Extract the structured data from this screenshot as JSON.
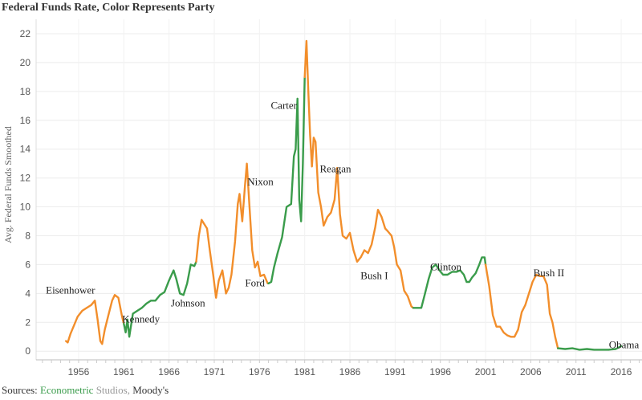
{
  "chart_data": {
    "type": "line",
    "title": "Federal Funds Rate, Color Represents Party",
    "ylabel": "Avg. Federal Funds Smoothed",
    "xlabel": "",
    "xlim": [
      1951.3,
      2018.3
    ],
    "ylim": [
      -0.6,
      23
    ],
    "x_ticks": [
      1956,
      1961,
      1966,
      1971,
      1976,
      1981,
      1986,
      1991,
      1996,
      2001,
      2006,
      2011,
      2016
    ],
    "y_ticks": [
      0,
      2,
      4,
      6,
      8,
      10,
      12,
      14,
      16,
      18,
      20,
      22
    ],
    "grid": true,
    "colors": {
      "Republican": "#f28e2b",
      "Democrat": "#3a9c4b"
    },
    "series": [
      {
        "party": "Republican",
        "points": [
          [
            1954.6,
            0.7
          ],
          [
            1954.8,
            0.6
          ],
          [
            1955.1,
            1.2
          ],
          [
            1955.5,
            1.8
          ],
          [
            1955.9,
            2.4
          ],
          [
            1956.4,
            2.8
          ],
          [
            1956.9,
            3.0
          ],
          [
            1957.4,
            3.2
          ],
          [
            1957.8,
            3.5
          ],
          [
            1958.1,
            2.2
          ],
          [
            1958.4,
            0.7
          ],
          [
            1958.6,
            0.5
          ],
          [
            1958.9,
            1.5
          ],
          [
            1959.3,
            2.5
          ],
          [
            1959.7,
            3.5
          ],
          [
            1960.0,
            3.9
          ],
          [
            1960.4,
            3.7
          ],
          [
            1960.8,
            2.4
          ],
          [
            1961.0,
            1.9
          ]
        ]
      },
      {
        "party": "Democrat",
        "points": [
          [
            1961.0,
            1.9
          ],
          [
            1961.2,
            1.3
          ],
          [
            1961.4,
            2.2
          ],
          [
            1961.6,
            1.0
          ],
          [
            1962.0,
            2.6
          ],
          [
            1962.5,
            2.8
          ],
          [
            1963.0,
            3.0
          ],
          [
            1963.5,
            3.3
          ],
          [
            1964.0,
            3.5
          ],
          [
            1964.5,
            3.5
          ],
          [
            1965.0,
            3.9
          ],
          [
            1965.5,
            4.1
          ],
          [
            1966.0,
            4.9
          ],
          [
            1966.5,
            5.6
          ],
          [
            1966.8,
            5.0
          ],
          [
            1967.2,
            4.0
          ],
          [
            1967.6,
            3.9
          ],
          [
            1968.0,
            4.7
          ],
          [
            1968.4,
            6.0
          ],
          [
            1968.8,
            5.9
          ],
          [
            1969.0,
            6.2
          ]
        ]
      },
      {
        "party": "Republican",
        "points": [
          [
            1969.0,
            6.2
          ],
          [
            1969.3,
            8.0
          ],
          [
            1969.6,
            9.1
          ],
          [
            1969.9,
            8.8
          ],
          [
            1970.2,
            8.5
          ],
          [
            1970.5,
            7.0
          ],
          [
            1970.9,
            5.2
          ],
          [
            1971.2,
            3.7
          ],
          [
            1971.5,
            4.9
          ],
          [
            1971.9,
            5.6
          ],
          [
            1972.3,
            4.0
          ],
          [
            1972.6,
            4.4
          ],
          [
            1972.9,
            5.3
          ],
          [
            1973.3,
            7.6
          ],
          [
            1973.6,
            10.2
          ],
          [
            1973.8,
            10.9
          ],
          [
            1974.1,
            9.0
          ],
          [
            1974.4,
            11.5
          ],
          [
            1974.6,
            13.0
          ],
          [
            1974.9,
            10.0
          ],
          [
            1975.2,
            7.0
          ],
          [
            1975.5,
            5.8
          ],
          [
            1975.8,
            6.2
          ],
          [
            1976.1,
            5.2
          ],
          [
            1976.5,
            5.3
          ],
          [
            1976.9,
            4.7
          ],
          [
            1977.0,
            4.7
          ]
        ]
      },
      {
        "party": "Democrat",
        "points": [
          [
            1977.0,
            4.7
          ],
          [
            1977.3,
            4.8
          ],
          [
            1977.6,
            5.8
          ],
          [
            1978.0,
            6.8
          ],
          [
            1978.5,
            7.9
          ],
          [
            1979.0,
            10.0
          ],
          [
            1979.5,
            10.2
          ],
          [
            1979.8,
            13.5
          ],
          [
            1980.0,
            14.0
          ],
          [
            1980.2,
            17.5
          ],
          [
            1980.4,
            10.5
          ],
          [
            1980.6,
            9.0
          ],
          [
            1980.8,
            13.0
          ],
          [
            1981.0,
            19.0
          ]
        ]
      },
      {
        "party": "Republican",
        "points": [
          [
            1981.0,
            19.0
          ],
          [
            1981.2,
            21.5
          ],
          [
            1981.4,
            18.0
          ],
          [
            1981.6,
            15.0
          ],
          [
            1981.8,
            12.8
          ],
          [
            1982.0,
            14.8
          ],
          [
            1982.2,
            14.5
          ],
          [
            1982.5,
            11.0
          ],
          [
            1982.8,
            10.0
          ],
          [
            1983.1,
            8.7
          ],
          [
            1983.5,
            9.3
          ],
          [
            1983.9,
            9.6
          ],
          [
            1984.3,
            10.5
          ],
          [
            1984.6,
            12.7
          ],
          [
            1984.9,
            9.5
          ],
          [
            1985.2,
            8.0
          ],
          [
            1985.6,
            7.8
          ],
          [
            1986.0,
            8.2
          ],
          [
            1986.4,
            7.0
          ],
          [
            1986.8,
            6.2
          ],
          [
            1987.2,
            6.5
          ],
          [
            1987.6,
            7.0
          ],
          [
            1988.0,
            6.8
          ],
          [
            1988.4,
            7.4
          ],
          [
            1988.8,
            8.6
          ],
          [
            1989.1,
            9.8
          ],
          [
            1989.5,
            9.3
          ],
          [
            1989.9,
            8.5
          ],
          [
            1990.2,
            8.3
          ],
          [
            1990.6,
            8.0
          ],
          [
            1990.9,
            7.2
          ],
          [
            1991.2,
            6.0
          ],
          [
            1991.6,
            5.6
          ],
          [
            1992.0,
            4.2
          ],
          [
            1992.4,
            3.8
          ],
          [
            1992.8,
            3.1
          ],
          [
            1993.0,
            3.0
          ]
        ]
      },
      {
        "party": "Democrat",
        "points": [
          [
            1993.0,
            3.0
          ],
          [
            1993.5,
            3.0
          ],
          [
            1993.9,
            3.0
          ],
          [
            1994.3,
            4.0
          ],
          [
            1994.7,
            5.0
          ],
          [
            1995.1,
            5.8
          ],
          [
            1995.5,
            6.0
          ],
          [
            1995.9,
            5.6
          ],
          [
            1996.3,
            5.3
          ],
          [
            1996.8,
            5.3
          ],
          [
            1997.3,
            5.5
          ],
          [
            1997.8,
            5.5
          ],
          [
            1998.2,
            5.6
          ],
          [
            1998.6,
            5.3
          ],
          [
            1998.9,
            4.8
          ],
          [
            1999.2,
            4.8
          ],
          [
            1999.5,
            5.1
          ],
          [
            1999.9,
            5.4
          ],
          [
            2000.3,
            6.0
          ],
          [
            2000.6,
            6.5
          ],
          [
            2000.9,
            6.5
          ],
          [
            2001.0,
            6.0
          ]
        ]
      },
      {
        "party": "Republican",
        "points": [
          [
            2001.0,
            6.0
          ],
          [
            2001.4,
            4.5
          ],
          [
            2001.8,
            2.5
          ],
          [
            2002.2,
            1.7
          ],
          [
            2002.6,
            1.7
          ],
          [
            2003.0,
            1.3
          ],
          [
            2003.4,
            1.1
          ],
          [
            2003.8,
            1.0
          ],
          [
            2004.2,
            1.0
          ],
          [
            2004.6,
            1.5
          ],
          [
            2005.0,
            2.7
          ],
          [
            2005.4,
            3.2
          ],
          [
            2005.8,
            4.0
          ],
          [
            2006.2,
            4.8
          ],
          [
            2006.6,
            5.3
          ],
          [
            2007.0,
            5.2
          ],
          [
            2007.4,
            5.2
          ],
          [
            2007.8,
            4.6
          ],
          [
            2008.1,
            2.6
          ],
          [
            2008.4,
            2.0
          ],
          [
            2008.7,
            1.0
          ],
          [
            2009.0,
            0.2
          ]
        ]
      },
      {
        "party": "Democrat",
        "points": [
          [
            2009.0,
            0.2
          ],
          [
            2009.8,
            0.15
          ],
          [
            2010.6,
            0.2
          ],
          [
            2011.4,
            0.1
          ],
          [
            2012.2,
            0.15
          ],
          [
            2013.0,
            0.1
          ],
          [
            2013.8,
            0.1
          ],
          [
            2014.6,
            0.1
          ],
          [
            2015.4,
            0.15
          ],
          [
            2016.0,
            0.35
          ]
        ]
      }
    ],
    "annotations": [
      {
        "text": "Eisenhower",
        "x": 1955.1,
        "y": 4.0
      },
      {
        "text": "Kennedy",
        "x": 1962.9,
        "y": 2.0
      },
      {
        "text": "Johnson",
        "x": 1968.1,
        "y": 3.1
      },
      {
        "text": "Nixon",
        "x": 1976.1,
        "y": 11.5
      },
      {
        "text": "Ford",
        "x": 1975.5,
        "y": 4.5
      },
      {
        "text": "Carter",
        "x": 1978.7,
        "y": 16.8
      },
      {
        "text": "Reagan",
        "x": 1984.4,
        "y": 12.4
      },
      {
        "text": "Bush I",
        "x": 1988.7,
        "y": 5.0
      },
      {
        "text": "Clinton",
        "x": 1996.6,
        "y": 5.6
      },
      {
        "text": "Bush II",
        "x": 2008.0,
        "y": 5.2
      },
      {
        "text": "Obama",
        "x": 2016.3,
        "y": 0.2
      }
    ]
  },
  "source": {
    "prefix": "Sources: ",
    "econometric": "Econometric",
    "studios": " Studios, ",
    "moodys": "Moody's"
  }
}
